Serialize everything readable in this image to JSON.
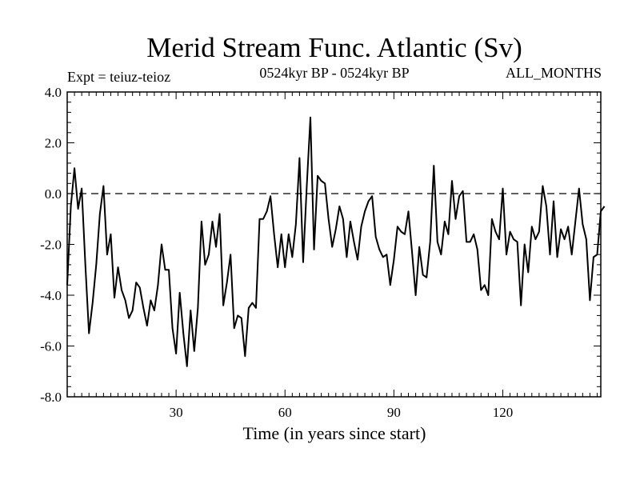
{
  "chart_data": {
    "type": "line",
    "title": "Merid Stream Func. Atlantic (Sv)",
    "subtitle_left": "Expt = teiuz-teioz",
    "subtitle_center": "0524kyr BP - 0524kyr BP",
    "subtitle_right": "ALL_MONTHS",
    "xlabel": "Time (in years since start)",
    "ylabel": "",
    "xlim": [
      0,
      147
    ],
    "ylim": [
      -8,
      4
    ],
    "x_ticks": [
      30,
      60,
      90,
      120
    ],
    "y_ticks": [
      -8,
      -6,
      -4,
      -2,
      0,
      2,
      4
    ],
    "y_tick_labels": [
      "-8.0",
      "-6.0",
      "-4.0",
      "-2.0",
      "0.0",
      "2.0",
      "4.0"
    ],
    "reference_line": {
      "y": 0,
      "style": "dashed"
    },
    "series": [
      {
        "name": "Merid Stream Func. Atlantic",
        "x_start": 0,
        "x_step": 1,
        "values": [
          -3.6,
          -0.5,
          1.0,
          -0.6,
          0.2,
          -2.8,
          -5.5,
          -4.3,
          -2.8,
          -0.8,
          0.3,
          -2.4,
          -1.6,
          -4.1,
          -2.9,
          -3.8,
          -4.2,
          -4.9,
          -4.6,
          -3.5,
          -3.7,
          -4.5,
          -5.2,
          -4.2,
          -4.6,
          -3.6,
          -2.0,
          -3.0,
          -3.0,
          -5.3,
          -6.3,
          -3.9,
          -5.5,
          -6.8,
          -4.6,
          -6.2,
          -4.5,
          -1.1,
          -2.8,
          -2.4,
          -1.1,
          -2.1,
          -0.8,
          -4.4,
          -3.5,
          -2.4,
          -5.3,
          -4.8,
          -4.9,
          -6.4,
          -4.5,
          -4.3,
          -4.5,
          -1.0,
          -1.0,
          -0.7,
          -0.1,
          -1.6,
          -2.9,
          -1.6,
          -2.9,
          -1.6,
          -2.5,
          -1.2,
          1.4,
          -2.7,
          0.3,
          3.0,
          -2.2,
          0.7,
          0.5,
          0.4,
          -1.0,
          -2.1,
          -1.4,
          -0.5,
          -1.0,
          -2.5,
          -1.1,
          -1.9,
          -2.6,
          -1.3,
          -0.7,
          -0.3,
          -0.1,
          -1.7,
          -2.2,
          -2.5,
          -2.4,
          -3.6,
          -2.6,
          -1.3,
          -1.5,
          -1.6,
          -0.7,
          -2.3,
          -4.0,
          -2.1,
          -3.2,
          -3.3,
          -1.9,
          1.1,
          -1.9,
          -2.4,
          -1.1,
          -1.6,
          0.5,
          -1.0,
          -0.1,
          0.1,
          -1.9,
          -1.9,
          -1.6,
          -2.2,
          -3.8,
          -3.6,
          -4.0,
          -1.0,
          -1.5,
          -1.8,
          0.2,
          -2.4,
          -1.5,
          -1.8,
          -1.9,
          -4.4,
          -2.0,
          -3.1,
          -1.3,
          -1.8,
          -1.5,
          0.3,
          -0.5,
          -2.4,
          -0.3,
          -2.5,
          -1.4,
          -1.8,
          -1.3,
          -2.4,
          -1.1,
          0.2,
          -1.2,
          -1.8,
          -4.2,
          -2.5,
          -2.4,
          -0.7,
          -0.5
        ]
      }
    ]
  }
}
